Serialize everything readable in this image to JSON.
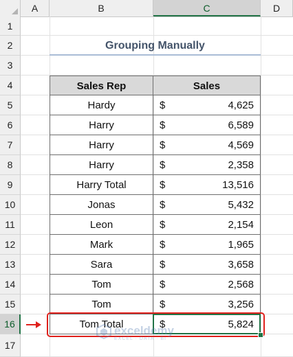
{
  "columns": [
    "A",
    "B",
    "C",
    "D"
  ],
  "rows": [
    "1",
    "2",
    "3",
    "4",
    "5",
    "6",
    "7",
    "8",
    "9",
    "10",
    "11",
    "12",
    "13",
    "14",
    "15",
    "16",
    "17"
  ],
  "active_cell": "C16",
  "title": "Grouping Manually",
  "table": {
    "headers": {
      "rep": "Sales Rep",
      "sales": "Sales"
    },
    "currency": "$",
    "rows": [
      {
        "rep": "Hardy",
        "amount": "4,625"
      },
      {
        "rep": "Harry",
        "amount": "6,589"
      },
      {
        "rep": "Harry",
        "amount": "4,569"
      },
      {
        "rep": "Harry",
        "amount": "2,358"
      },
      {
        "rep": "Harry Total",
        "amount": "13,516"
      },
      {
        "rep": "Jonas",
        "amount": "5,432"
      },
      {
        "rep": "Leon",
        "amount": "2,154"
      },
      {
        "rep": "Mark",
        "amount": "1,965"
      },
      {
        "rep": "Sara",
        "amount": "3,658"
      },
      {
        "rep": "Tom",
        "amount": "2,568"
      },
      {
        "rep": "Tom",
        "amount": "3,256"
      },
      {
        "rep": "Tom Total",
        "amount": "5,824"
      }
    ]
  },
  "watermark": {
    "name": "exceldemy",
    "tagline": "EXCEL · DATA · BI"
  },
  "colors": {
    "accent": "#217346",
    "highlight": "#e0201b",
    "title": "#44546a",
    "header_fill": "#d9d9d9"
  }
}
